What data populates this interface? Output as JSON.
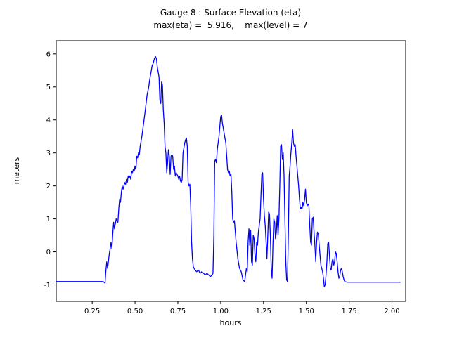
{
  "chart_data": {
    "type": "line",
    "title": "Gauge 8 : Surface Elevation (eta)",
    "subtitle": "max(eta) =  5.916,    max(level) = 7",
    "xlabel": "hours",
    "ylabel": "meters",
    "max_eta": 5.916,
    "max_level": 7,
    "xlim": [
      0.04,
      2.08
    ],
    "ylim": [
      -1.5,
      6.4
    ],
    "grid": false,
    "legend": "none",
    "line_color": "#0000ff",
    "axis_color": "#000000",
    "x_ticks": [
      0.25,
      0.5,
      0.75,
      1.0,
      1.25,
      1.5,
      1.75,
      2.0
    ],
    "x_tick_labels": [
      "0.25",
      "0.50",
      "0.75",
      "1.00",
      "1.25",
      "1.50",
      "1.75",
      "2.00"
    ],
    "y_ticks": [
      -1,
      0,
      1,
      2,
      3,
      4,
      5,
      6
    ],
    "y_tick_labels": [
      "-1",
      "0",
      "1",
      "2",
      "3",
      "4",
      "5",
      "6"
    ],
    "series": [
      {
        "name": "eta",
        "points": [
          [
            0.04,
            -0.9
          ],
          [
            0.1,
            -0.9
          ],
          [
            0.16,
            -0.9
          ],
          [
            0.22,
            -0.9
          ],
          [
            0.28,
            -0.9
          ],
          [
            0.315,
            -0.9
          ],
          [
            0.325,
            -0.95
          ],
          [
            0.33,
            -0.55
          ],
          [
            0.335,
            -0.3
          ],
          [
            0.34,
            -0.5
          ],
          [
            0.35,
            -0.05
          ],
          [
            0.355,
            0.1
          ],
          [
            0.36,
            0.3
          ],
          [
            0.365,
            0.1
          ],
          [
            0.37,
            0.55
          ],
          [
            0.375,
            0.9
          ],
          [
            0.38,
            0.7
          ],
          [
            0.385,
            0.85
          ],
          [
            0.39,
            1.0
          ],
          [
            0.395,
            0.95
          ],
          [
            0.4,
            0.9
          ],
          [
            0.405,
            1.3
          ],
          [
            0.41,
            1.6
          ],
          [
            0.415,
            1.5
          ],
          [
            0.42,
            1.8
          ],
          [
            0.425,
            2.0
          ],
          [
            0.43,
            1.9
          ],
          [
            0.435,
            2.0
          ],
          [
            0.44,
            2.1
          ],
          [
            0.445,
            2.05
          ],
          [
            0.45,
            2.2
          ],
          [
            0.455,
            2.1
          ],
          [
            0.46,
            2.3
          ],
          [
            0.465,
            2.25
          ],
          [
            0.47,
            2.3
          ],
          [
            0.475,
            2.2
          ],
          [
            0.48,
            2.45
          ],
          [
            0.485,
            2.4
          ],
          [
            0.49,
            2.5
          ],
          [
            0.495,
            2.45
          ],
          [
            0.5,
            2.6
          ],
          [
            0.505,
            2.5
          ],
          [
            0.51,
            2.9
          ],
          [
            0.515,
            2.85
          ],
          [
            0.52,
            3.0
          ],
          [
            0.525,
            2.95
          ],
          [
            0.53,
            3.2
          ],
          [
            0.535,
            3.35
          ],
          [
            0.54,
            3.5
          ],
          [
            0.55,
            3.9
          ],
          [
            0.56,
            4.3
          ],
          [
            0.57,
            4.75
          ],
          [
            0.58,
            5.0
          ],
          [
            0.585,
            5.2
          ],
          [
            0.59,
            5.35
          ],
          [
            0.6,
            5.65
          ],
          [
            0.605,
            5.7
          ],
          [
            0.61,
            5.8
          ],
          [
            0.615,
            5.88
          ],
          [
            0.62,
            5.916
          ],
          [
            0.625,
            5.85
          ],
          [
            0.63,
            5.6
          ],
          [
            0.635,
            5.45
          ],
          [
            0.64,
            5.3
          ],
          [
            0.645,
            4.6
          ],
          [
            0.65,
            4.5
          ],
          [
            0.655,
            5.15
          ],
          [
            0.66,
            5.05
          ],
          [
            0.665,
            4.3
          ],
          [
            0.67,
            3.9
          ],
          [
            0.675,
            3.2
          ],
          [
            0.68,
            3.0
          ],
          [
            0.685,
            2.4
          ],
          [
            0.69,
            2.7
          ],
          [
            0.695,
            3.1
          ],
          [
            0.7,
            2.9
          ],
          [
            0.705,
            2.35
          ],
          [
            0.71,
            2.9
          ],
          [
            0.715,
            2.95
          ],
          [
            0.72,
            2.9
          ],
          [
            0.725,
            2.5
          ],
          [
            0.73,
            2.6
          ],
          [
            0.735,
            2.3
          ],
          [
            0.74,
            2.4
          ],
          [
            0.745,
            2.35
          ],
          [
            0.75,
            2.3
          ],
          [
            0.755,
            2.2
          ],
          [
            0.76,
            2.3
          ],
          [
            0.765,
            2.15
          ],
          [
            0.77,
            2.1
          ],
          [
            0.775,
            2.2
          ],
          [
            0.78,
            3.0
          ],
          [
            0.785,
            3.15
          ],
          [
            0.79,
            3.3
          ],
          [
            0.795,
            3.4
          ],
          [
            0.8,
            3.45
          ],
          [
            0.805,
            3.2
          ],
          [
            0.81,
            2.1
          ],
          [
            0.815,
            2.0
          ],
          [
            0.82,
            2.05
          ],
          [
            0.825,
            1.4
          ],
          [
            0.83,
            0.3
          ],
          [
            0.835,
            -0.2
          ],
          [
            0.84,
            -0.45
          ],
          [
            0.85,
            -0.55
          ],
          [
            0.86,
            -0.6
          ],
          [
            0.87,
            -0.55
          ],
          [
            0.88,
            -0.65
          ],
          [
            0.89,
            -0.6
          ],
          [
            0.9,
            -0.65
          ],
          [
            0.91,
            -0.7
          ],
          [
            0.92,
            -0.65
          ],
          [
            0.93,
            -0.7
          ],
          [
            0.94,
            -0.75
          ],
          [
            0.95,
            -0.7
          ],
          [
            0.955,
            -0.65
          ],
          [
            0.96,
            0.5
          ],
          [
            0.965,
            2.75
          ],
          [
            0.97,
            2.8
          ],
          [
            0.975,
            2.7
          ],
          [
            0.98,
            3.1
          ],
          [
            0.985,
            3.3
          ],
          [
            0.99,
            3.5
          ],
          [
            0.995,
            3.8
          ],
          [
            1.0,
            4.1
          ],
          [
            1.005,
            4.15
          ],
          [
            1.01,
            3.9
          ],
          [
            1.015,
            3.75
          ],
          [
            1.02,
            3.6
          ],
          [
            1.03,
            3.3
          ],
          [
            1.04,
            2.5
          ],
          [
            1.045,
            2.4
          ],
          [
            1.05,
            2.45
          ],
          [
            1.055,
            2.3
          ],
          [
            1.06,
            2.35
          ],
          [
            1.065,
            1.8
          ],
          [
            1.07,
            1.0
          ],
          [
            1.075,
            0.9
          ],
          [
            1.08,
            0.95
          ],
          [
            1.09,
            0.3
          ],
          [
            1.1,
            -0.2
          ],
          [
            1.11,
            -0.5
          ],
          [
            1.12,
            -0.6
          ],
          [
            1.13,
            -0.85
          ],
          [
            1.14,
            -0.9
          ],
          [
            1.15,
            -0.5
          ],
          [
            1.155,
            -0.6
          ],
          [
            1.16,
            0.3
          ],
          [
            1.165,
            0.7
          ],
          [
            1.17,
            0.2
          ],
          [
            1.175,
            0.65
          ],
          [
            1.18,
            -0.3
          ],
          [
            1.185,
            -0.4
          ],
          [
            1.19,
            0.5
          ],
          [
            1.195,
            0.4
          ],
          [
            1.2,
            -0.1
          ],
          [
            1.205,
            -0.3
          ],
          [
            1.21,
            0.3
          ],
          [
            1.215,
            0.2
          ],
          [
            1.22,
            0.6
          ],
          [
            1.23,
            1.0
          ],
          [
            1.235,
            1.7
          ],
          [
            1.24,
            2.35
          ],
          [
            1.245,
            2.4
          ],
          [
            1.25,
            1.6
          ],
          [
            1.255,
            1.1
          ],
          [
            1.26,
            0.8
          ],
          [
            1.265,
            0.3
          ],
          [
            1.27,
            -0.2
          ],
          [
            1.275,
            0.5
          ],
          [
            1.28,
            1.2
          ],
          [
            1.285,
            1.15
          ],
          [
            1.29,
            0.5
          ],
          [
            1.295,
            -0.5
          ],
          [
            1.3,
            -0.8
          ],
          [
            1.305,
            0.2
          ],
          [
            1.31,
            1.0
          ],
          [
            1.315,
            0.9
          ],
          [
            1.32,
            0.4
          ],
          [
            1.325,
            0.6
          ],
          [
            1.33,
            1.1
          ],
          [
            1.335,
            0.5
          ],
          [
            1.34,
            1.0
          ],
          [
            1.345,
            2.0
          ],
          [
            1.35,
            3.2
          ],
          [
            1.355,
            3.25
          ],
          [
            1.36,
            2.8
          ],
          [
            1.365,
            3.0
          ],
          [
            1.37,
            2.3
          ],
          [
            1.375,
            1.0
          ],
          [
            1.38,
            -0.3
          ],
          [
            1.385,
            -0.85
          ],
          [
            1.39,
            -0.9
          ],
          [
            1.395,
            0.5
          ],
          [
            1.4,
            2.3
          ],
          [
            1.405,
            2.6
          ],
          [
            1.41,
            3.0
          ],
          [
            1.415,
            3.3
          ],
          [
            1.42,
            3.7
          ],
          [
            1.425,
            3.3
          ],
          [
            1.43,
            3.2
          ],
          [
            1.435,
            3.25
          ],
          [
            1.44,
            2.9
          ],
          [
            1.445,
            2.6
          ],
          [
            1.45,
            2.3
          ],
          [
            1.455,
            2.0
          ],
          [
            1.46,
            1.6
          ],
          [
            1.465,
            1.3
          ],
          [
            1.47,
            1.35
          ],
          [
            1.475,
            1.3
          ],
          [
            1.48,
            1.5
          ],
          [
            1.485,
            1.4
          ],
          [
            1.49,
            1.6
          ],
          [
            1.495,
            1.9
          ],
          [
            1.5,
            1.5
          ],
          [
            1.505,
            1.4
          ],
          [
            1.51,
            1.45
          ],
          [
            1.515,
            1.4
          ],
          [
            1.52,
            0.8
          ],
          [
            1.525,
            0.3
          ],
          [
            1.53,
            0.2
          ],
          [
            1.535,
            1.0
          ],
          [
            1.54,
            1.05
          ],
          [
            1.545,
            0.6
          ],
          [
            1.55,
            0.2
          ],
          [
            1.555,
            -0.3
          ],
          [
            1.56,
            0.3
          ],
          [
            1.565,
            0.6
          ],
          [
            1.57,
            0.55
          ],
          [
            1.575,
            0.2
          ],
          [
            1.58,
            -0.1
          ],
          [
            1.585,
            -0.4
          ],
          [
            1.59,
            -0.5
          ],
          [
            1.595,
            -0.6
          ],
          [
            1.6,
            -0.8
          ],
          [
            1.605,
            -1.05
          ],
          [
            1.61,
            -1.0
          ],
          [
            1.615,
            -0.7
          ],
          [
            1.62,
            -0.3
          ],
          [
            1.625,
            0.25
          ],
          [
            1.63,
            0.3
          ],
          [
            1.635,
            -0.1
          ],
          [
            1.64,
            -0.5
          ],
          [
            1.645,
            -0.55
          ],
          [
            1.65,
            -0.3
          ],
          [
            1.655,
            -0.2
          ],
          [
            1.66,
            -0.4
          ],
          [
            1.665,
            -0.3
          ],
          [
            1.67,
            0.0
          ],
          [
            1.675,
            -0.05
          ],
          [
            1.68,
            -0.3
          ],
          [
            1.685,
            -0.6
          ],
          [
            1.69,
            -0.8
          ],
          [
            1.695,
            -0.75
          ],
          [
            1.7,
            -0.55
          ],
          [
            1.705,
            -0.5
          ],
          [
            1.71,
            -0.6
          ],
          [
            1.715,
            -0.75
          ],
          [
            1.72,
            -0.85
          ],
          [
            1.725,
            -0.9
          ],
          [
            1.74,
            -0.92
          ],
          [
            1.78,
            -0.92
          ],
          [
            1.85,
            -0.92
          ],
          [
            1.92,
            -0.92
          ],
          [
            2.0,
            -0.92
          ],
          [
            2.05,
            -0.92
          ]
        ]
      }
    ]
  }
}
